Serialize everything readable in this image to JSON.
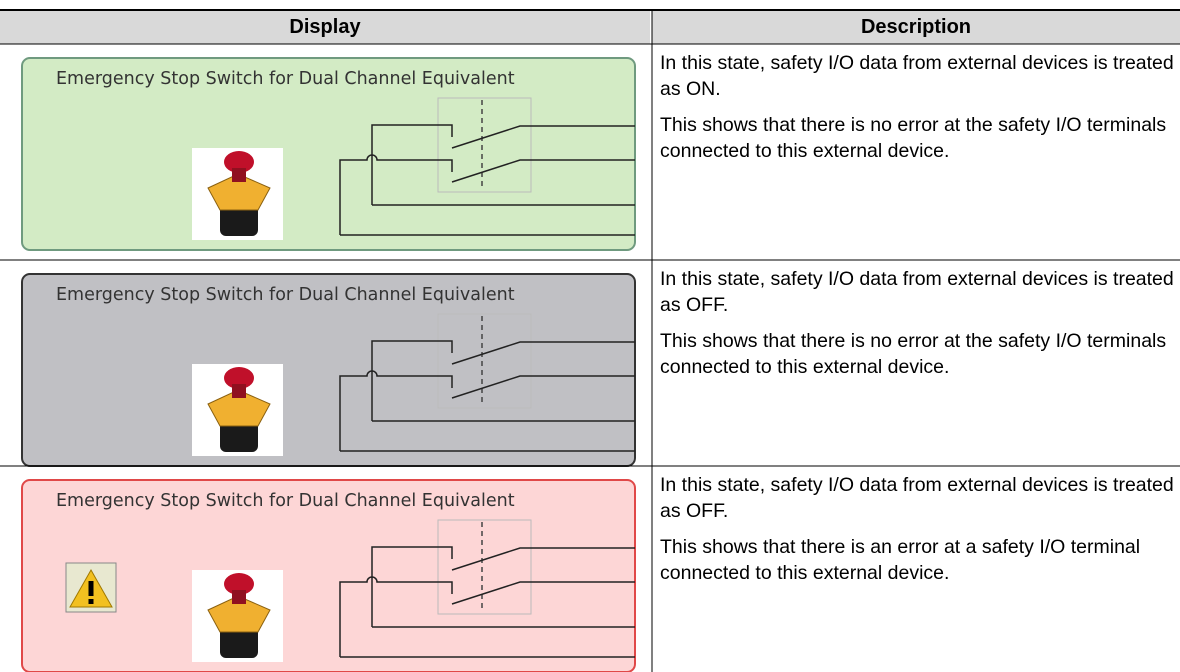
{
  "table": {
    "columns": [
      "Display",
      "Description"
    ],
    "rows": [
      {
        "panel_title": "Emergency Stop Switch for Dual Channel Equivalent",
        "description": [
          "In this state, safety I/O data from external devices is treated as ON.",
          "This shows that there is no error at the safety I/O terminals connected to this external device."
        ]
      },
      {
        "panel_title": "Emergency Stop Switch for Dual Channel Equivalent",
        "description": [
          "In this state, safety I/O data from external devices is treated as OFF.",
          "This shows that there is no error at the safety I/O terminals connected to this external device."
        ]
      },
      {
        "panel_title": "Emergency Stop Switch for Dual Channel Equivalent",
        "description": [
          "In this state, safety I/O data from external devices is treated as OFF.",
          "This shows that there is an error at a safety I/O terminal connected to this external device."
        ]
      }
    ]
  }
}
